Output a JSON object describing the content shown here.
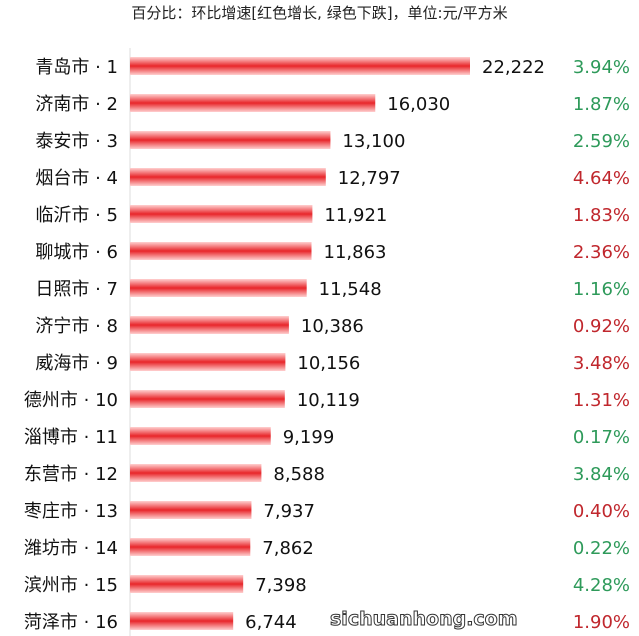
{
  "chart_data": {
    "type": "bar",
    "orientation": "horizontal",
    "subtitle": "百分比：环比增速[红色增长, 绿色下跌]，单位:元/平方米",
    "categories": [
      "青岛市 · 1",
      "济南市 · 2",
      "泰安市 · 3",
      "烟台市 · 4",
      "临沂市 · 5",
      "聊城市 · 6",
      "日照市 · 7",
      "济宁市 · 8",
      "威海市 · 9",
      "德州市 · 10",
      "淄博市 · 11",
      "东营市 · 12",
      "枣庄市 · 13",
      "潍坊市 · 14",
      "滨州市 · 15",
      "菏泽市 · 16"
    ],
    "values": [
      22222,
      16030,
      13100,
      12797,
      11921,
      11863,
      11548,
      10386,
      10156,
      10119,
      9199,
      8588,
      7937,
      7862,
      7398,
      6744
    ],
    "value_labels": [
      "22,222",
      "16,030",
      "13,100",
      "12,797",
      "11,921",
      "11,863",
      "11,548",
      "10,386",
      "10,156",
      "10,119",
      "9,199",
      "8,588",
      "7,937",
      "7,862",
      "7,398",
      "6,744"
    ],
    "growth": [
      "3.94%",
      "1.87%",
      "2.59%",
      "4.64%",
      "1.83%",
      "2.36%",
      "1.16%",
      "0.92%",
      "3.48%",
      "1.31%",
      "0.17%",
      "3.84%",
      "0.40%",
      "0.22%",
      "4.28%",
      "1.90%"
    ],
    "growth_direction": [
      "down",
      "down",
      "down",
      "up",
      "up",
      "up",
      "down",
      "up",
      "up",
      "up",
      "down",
      "down",
      "up",
      "down",
      "down",
      "up"
    ],
    "colors": {
      "bar": "#e8262a",
      "up": "#c0272d",
      "down": "#2e9a5a"
    },
    "grid": false
  },
  "watermark": "sichuanhong.com"
}
